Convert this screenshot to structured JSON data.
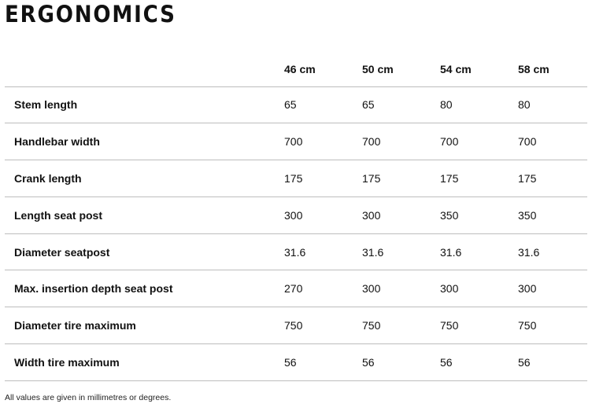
{
  "title": "ERGONOMICS",
  "table": {
    "corner": "",
    "sizes": [
      "46 cm",
      "50 cm",
      "54 cm",
      "58 cm"
    ],
    "rows": [
      {
        "label": "Stem length",
        "values": [
          "65",
          "65",
          "80",
          "80"
        ]
      },
      {
        "label": "Handlebar width",
        "values": [
          "700",
          "700",
          "700",
          "700"
        ]
      },
      {
        "label": "Crank length",
        "values": [
          "175",
          "175",
          "175",
          "175"
        ]
      },
      {
        "label": "Length seat post",
        "values": [
          "300",
          "300",
          "350",
          "350"
        ]
      },
      {
        "label": "Diameter seatpost",
        "values": [
          "31.6",
          "31.6",
          "31.6",
          "31.6"
        ]
      },
      {
        "label": "Max. insertion depth seat post",
        "values": [
          "270",
          "300",
          "300",
          "300"
        ]
      },
      {
        "label": "Diameter tire maximum",
        "values": [
          "750",
          "750",
          "750",
          "750"
        ]
      },
      {
        "label": "Width tire maximum",
        "values": [
          "56",
          "56",
          "56",
          "56"
        ]
      }
    ]
  },
  "footnote": "All values are given in millimetres or degrees."
}
